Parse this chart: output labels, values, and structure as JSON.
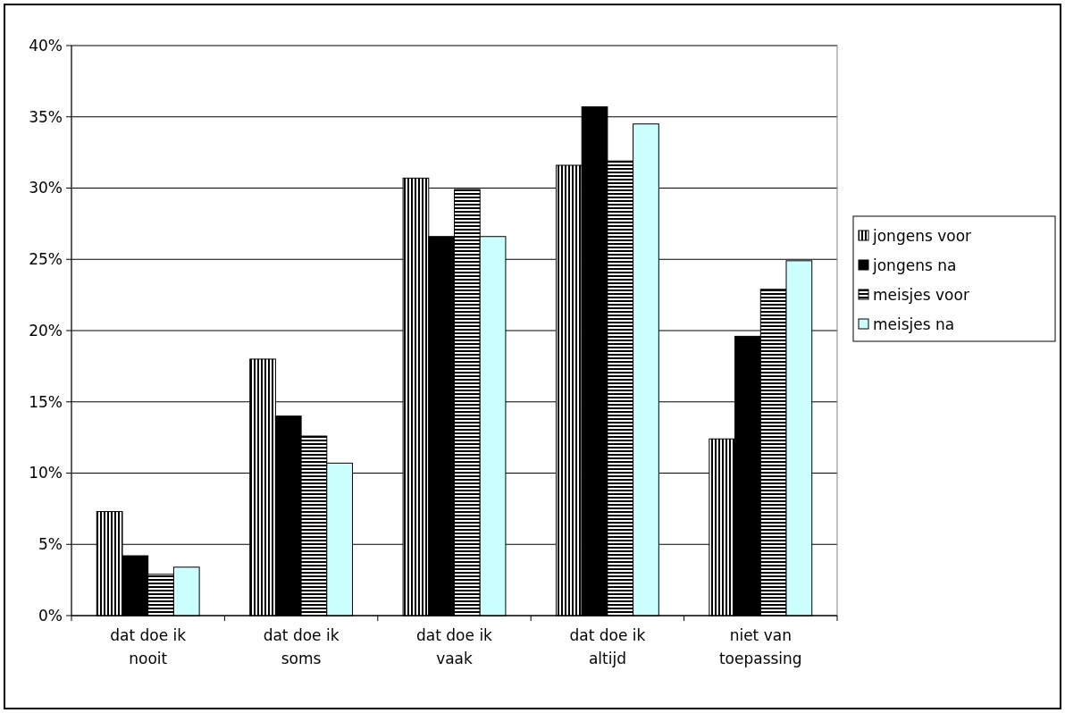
{
  "chart_data": {
    "type": "bar",
    "categories": [
      "dat doe ik nooit",
      "dat doe ik soms",
      "dat doe ik vaak",
      "dat doe ik altijd",
      "niet van toepassing"
    ],
    "series": [
      {
        "name": "jongens voor",
        "color": "#000000",
        "values": [
          7.3,
          18.0,
          30.7,
          31.6,
          12.4
        ]
      },
      {
        "name": "jongens na",
        "color": "#000000",
        "values": [
          4.2,
          14.0,
          26.6,
          35.7,
          19.6
        ]
      },
      {
        "name": "meisjes voor",
        "color": "#000000",
        "values": [
          2.9,
          12.6,
          29.9,
          31.9,
          22.9
        ]
      },
      {
        "name": "meisjes na",
        "color": "#ccffff",
        "values": [
          3.4,
          10.7,
          26.6,
          34.5,
          24.9
        ]
      }
    ],
    "ylim": [
      0,
      40
    ],
    "yticks": [
      {
        "value": 0,
        "label": "0%"
      },
      {
        "value": 5,
        "label": "5%"
      },
      {
        "value": 10,
        "label": "10%"
      },
      {
        "value": 15,
        "label": "15%"
      },
      {
        "value": 20,
        "label": "20%"
      },
      {
        "value": 25,
        "label": "25%"
      },
      {
        "value": 30,
        "label": "30%"
      },
      {
        "value": 35,
        "label": "35%"
      },
      {
        "value": 40,
        "label": "40%"
      }
    ],
    "grid": "y",
    "legend": "right"
  }
}
